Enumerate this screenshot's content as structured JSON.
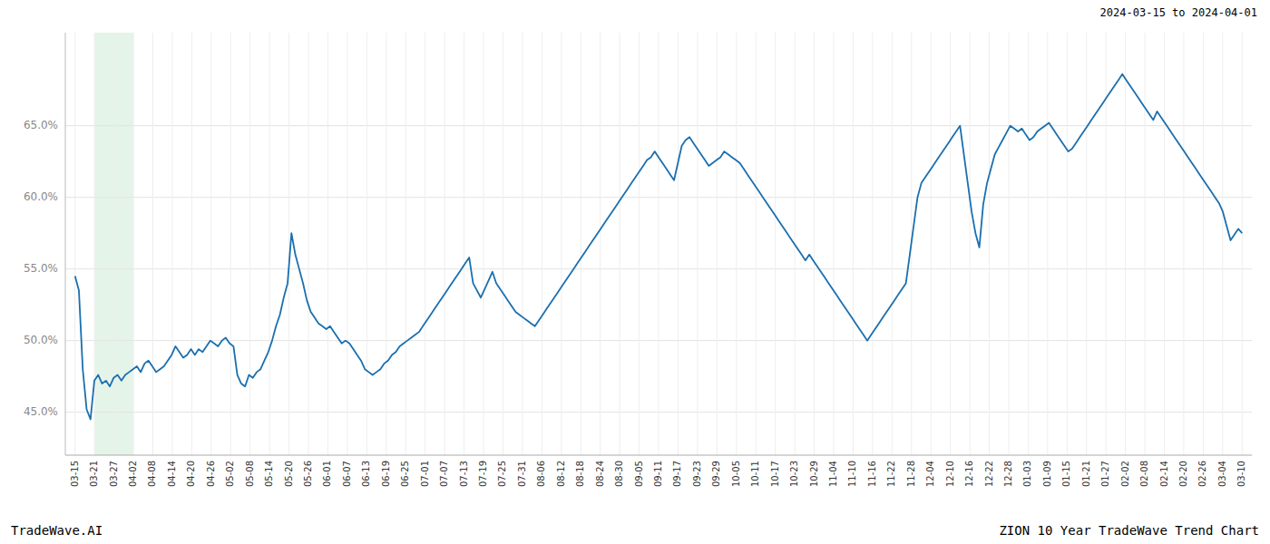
{
  "chart_data": {
    "type": "line",
    "annotations": [
      "2024-03-15 to 2024-04-01",
      "TradeWave.AI",
      "ZION 10 Year TradeWave Trend Chart"
    ],
    "color": "#1a6faf",
    "grid": true,
    "span": {
      "start": "03-21",
      "end": "04-02",
      "color": "#d4edda"
    },
    "xlim": [
      -0.5,
      60.5
    ],
    "xticks": [
      {
        "value": 0,
        "label": "03-15"
      },
      {
        "value": 1,
        "label": "03-21"
      },
      {
        "value": 2,
        "label": "03-27"
      },
      {
        "value": 3,
        "label": "04-02"
      },
      {
        "value": 4,
        "label": "04-08"
      },
      {
        "value": 5,
        "label": "04-14"
      },
      {
        "value": 6,
        "label": "04-20"
      },
      {
        "value": 7,
        "label": "04-26"
      },
      {
        "value": 8,
        "label": "05-02"
      },
      {
        "value": 9,
        "label": "05-08"
      },
      {
        "value": 10,
        "label": "05-14"
      },
      {
        "value": 11,
        "label": "05-20"
      },
      {
        "value": 12,
        "label": "05-26"
      },
      {
        "value": 13,
        "label": "06-01"
      },
      {
        "value": 14,
        "label": "06-07"
      },
      {
        "value": 15,
        "label": "06-13"
      },
      {
        "value": 16,
        "label": "06-19"
      },
      {
        "value": 17,
        "label": "06-25"
      },
      {
        "value": 18,
        "label": "07-01"
      },
      {
        "value": 19,
        "label": "07-07"
      },
      {
        "value": 20,
        "label": "07-13"
      },
      {
        "value": 21,
        "label": "07-19"
      },
      {
        "value": 22,
        "label": "07-25"
      },
      {
        "value": 23,
        "label": "07-31"
      },
      {
        "value": 24,
        "label": "08-06"
      },
      {
        "value": 25,
        "label": "08-12"
      },
      {
        "value": 26,
        "label": "08-18"
      },
      {
        "value": 27,
        "label": "08-24"
      },
      {
        "value": 28,
        "label": "08-30"
      },
      {
        "value": 29,
        "label": "09-05"
      },
      {
        "value": 30,
        "label": "09-11"
      },
      {
        "value": 31,
        "label": "09-17"
      },
      {
        "value": 32,
        "label": "09-23"
      },
      {
        "value": 33,
        "label": "09-29"
      },
      {
        "value": 34,
        "label": "10-05"
      },
      {
        "value": 35,
        "label": "10-11"
      },
      {
        "value": 36,
        "label": "10-17"
      },
      {
        "value": 37,
        "label": "10-23"
      },
      {
        "value": 38,
        "label": "10-29"
      },
      {
        "value": 39,
        "label": "11-04"
      },
      {
        "value": 40,
        "label": "11-10"
      },
      {
        "value": 41,
        "label": "11-16"
      },
      {
        "value": 42,
        "label": "11-22"
      },
      {
        "value": 43,
        "label": "11-28"
      },
      {
        "value": 44,
        "label": "12-04"
      },
      {
        "value": 45,
        "label": "12-10"
      },
      {
        "value": 46,
        "label": "12-16"
      },
      {
        "value": 47,
        "label": "12-22"
      },
      {
        "value": 48,
        "label": "12-28"
      },
      {
        "value": 49,
        "label": "01-03"
      },
      {
        "value": 50,
        "label": "01-09"
      },
      {
        "value": 51,
        "label": "01-15"
      },
      {
        "value": 52,
        "label": "01-21"
      },
      {
        "value": 53,
        "label": "01-27"
      },
      {
        "value": 54,
        "label": "02-02"
      },
      {
        "value": 55,
        "label": "02-08"
      },
      {
        "value": 56,
        "label": "02-14"
      },
      {
        "value": 57,
        "label": "02-20"
      },
      {
        "value": 58,
        "label": "02-26"
      },
      {
        "value": 59,
        "label": "03-04"
      },
      {
        "value": 60,
        "label": "03-10"
      }
    ],
    "ylim": [
      0.42,
      0.715
    ],
    "yticks": [
      {
        "value": 0.45,
        "label": "45.0%"
      },
      {
        "value": 0.5,
        "label": "50.0%"
      },
      {
        "value": 0.55,
        "label": "55.0%"
      },
      {
        "value": 0.6,
        "label": "60.0%"
      },
      {
        "value": 0.65,
        "label": "65.0%"
      }
    ],
    "values": [
      0.545,
      0.535,
      0.48,
      0.452,
      0.445,
      0.472,
      0.476,
      0.47,
      0.472,
      0.468,
      0.474,
      0.476,
      0.472,
      0.476,
      0.478,
      0.48,
      0.482,
      0.478,
      0.484,
      0.486,
      0.482,
      0.478,
      0.48,
      0.482,
      0.486,
      0.49,
      0.496,
      0.492,
      0.488,
      0.49,
      0.494,
      0.49,
      0.494,
      0.492,
      0.496,
      0.5,
      0.498,
      0.496,
      0.5,
      0.502,
      0.498,
      0.496,
      0.476,
      0.47,
      0.468,
      0.476,
      0.474,
      0.478,
      0.48,
      0.486,
      0.492,
      0.5,
      0.51,
      0.518,
      0.53,
      0.54,
      0.575,
      0.56,
      0.55,
      0.54,
      0.528,
      0.52,
      0.516,
      0.512,
      0.51,
      0.508,
      0.51,
      0.506,
      0.502,
      0.498,
      0.5,
      0.498,
      0.494,
      0.49,
      0.486,
      0.48,
      0.478,
      0.476,
      0.478,
      0.48,
      0.484,
      0.486,
      0.49,
      0.492,
      0.496,
      0.498,
      0.5,
      0.502,
      0.504,
      0.506,
      0.51,
      0.514,
      0.518,
      0.522,
      0.526,
      0.53,
      0.534,
      0.538,
      0.542,
      0.546,
      0.55,
      0.554,
      0.558,
      0.54,
      0.535,
      0.53,
      0.536,
      0.542,
      0.548,
      0.54,
      0.536,
      0.532,
      0.528,
      0.524,
      0.52,
      0.518,
      0.516,
      0.514,
      0.512,
      0.51,
      0.514,
      0.518,
      0.522,
      0.526,
      0.53,
      0.534,
      0.538,
      0.542,
      0.546,
      0.55,
      0.554,
      0.558,
      0.562,
      0.566,
      0.57,
      0.574,
      0.578,
      0.582,
      0.586,
      0.59,
      0.594,
      0.598,
      0.602,
      0.606,
      0.61,
      0.614,
      0.618,
      0.622,
      0.626,
      0.628,
      0.632,
      0.628,
      0.624,
      0.62,
      0.616,
      0.612,
      0.624,
      0.636,
      0.64,
      0.642,
      0.638,
      0.634,
      0.63,
      0.626,
      0.622,
      0.624,
      0.626,
      0.628,
      0.632,
      0.63,
      0.628,
      0.626,
      0.624,
      0.62,
      0.616,
      0.612,
      0.608,
      0.604,
      0.6,
      0.596,
      0.592,
      0.588,
      0.584,
      0.58,
      0.576,
      0.572,
      0.568,
      0.564,
      0.56,
      0.556,
      0.56,
      0.556,
      0.552,
      0.548,
      0.544,
      0.54,
      0.536,
      0.532,
      0.528,
      0.524,
      0.52,
      0.516,
      0.512,
      0.508,
      0.504,
      0.5,
      0.504,
      0.508,
      0.512,
      0.516,
      0.52,
      0.524,
      0.528,
      0.532,
      0.536,
      0.54,
      0.56,
      0.58,
      0.6,
      0.61,
      0.614,
      0.618,
      0.622,
      0.626,
      0.63,
      0.634,
      0.638,
      0.642,
      0.646,
      0.65,
      0.63,
      0.61,
      0.59,
      0.575,
      0.565,
      0.595,
      0.61,
      0.62,
      0.63,
      0.635,
      0.64,
      0.645,
      0.65,
      0.648,
      0.646,
      0.648,
      0.644,
      0.64,
      0.642,
      0.646,
      0.648,
      0.65,
      0.652,
      0.648,
      0.644,
      0.64,
      0.636,
      0.632,
      0.634,
      0.638,
      0.642,
      0.646,
      0.65,
      0.654,
      0.658,
      0.662,
      0.666,
      0.67,
      0.674,
      0.678,
      0.682,
      0.686,
      0.682,
      0.678,
      0.674,
      0.67,
      0.666,
      0.662,
      0.658,
      0.654,
      0.66,
      0.656,
      0.652,
      0.648,
      0.644,
      0.64,
      0.636,
      0.632,
      0.628,
      0.624,
      0.62,
      0.616,
      0.612,
      0.608,
      0.604,
      0.6,
      0.596,
      0.59,
      0.58,
      0.57,
      0.574,
      0.578,
      0.575
    ]
  }
}
